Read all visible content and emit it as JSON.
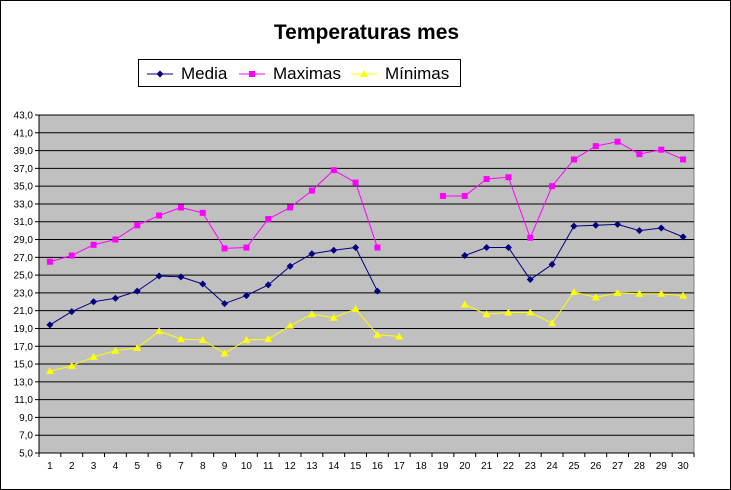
{
  "chart_data": {
    "type": "line",
    "title": "Temperaturas mes",
    "xlabel": "",
    "ylabel": "",
    "x": [
      1,
      2,
      3,
      4,
      5,
      6,
      7,
      8,
      9,
      10,
      11,
      12,
      13,
      14,
      15,
      16,
      17,
      18,
      19,
      20,
      21,
      22,
      23,
      24,
      25,
      26,
      27,
      28,
      29,
      30
    ],
    "ylim": [
      5.0,
      43.0
    ],
    "yticks": [
      "5,0",
      "7,0",
      "9,0",
      "11,0",
      "13,0",
      "15,0",
      "17,0",
      "19,0",
      "21,0",
      "23,0",
      "25,0",
      "27,0",
      "29,0",
      "31,0",
      "33,0",
      "35,0",
      "37,0",
      "39,0",
      "41,0",
      "43,0"
    ],
    "grid": true,
    "legend_position": "top",
    "plot_background": "#c0c0c0",
    "series": [
      {
        "name": "Media",
        "color": "#000080",
        "marker": "diamond",
        "values": [
          19.4,
          20.9,
          22.0,
          22.4,
          23.2,
          24.9,
          24.8,
          24.0,
          21.8,
          22.7,
          23.9,
          26.0,
          27.4,
          27.8,
          28.1,
          23.2,
          null,
          null,
          null,
          27.2,
          28.1,
          28.1,
          24.5,
          26.2,
          30.5,
          30.6,
          30.7,
          30.0,
          30.3,
          29.3
        ]
      },
      {
        "name": "Maximas",
        "color": "#ff00ff",
        "marker": "square",
        "values": [
          26.5,
          27.2,
          28.4,
          29.0,
          30.6,
          31.7,
          32.6,
          32.0,
          28.0,
          28.1,
          31.3,
          32.6,
          34.5,
          36.8,
          35.4,
          28.1,
          null,
          null,
          33.9,
          33.9,
          35.8,
          36.0,
          29.2,
          35.0,
          38.0,
          39.5,
          40.0,
          38.6,
          39.1,
          38.0
        ]
      },
      {
        "name": "Mínimas",
        "color": "#ffff00",
        "marker": "triangle",
        "values": [
          14.2,
          14.8,
          15.8,
          16.5,
          16.8,
          18.7,
          17.8,
          17.7,
          16.2,
          17.7,
          17.8,
          19.3,
          20.6,
          20.2,
          21.2,
          18.3,
          18.1,
          null,
          null,
          21.7,
          20.6,
          20.8,
          20.8,
          19.6,
          23.1,
          22.5,
          23.0,
          22.9,
          22.9,
          22.7
        ]
      }
    ]
  }
}
